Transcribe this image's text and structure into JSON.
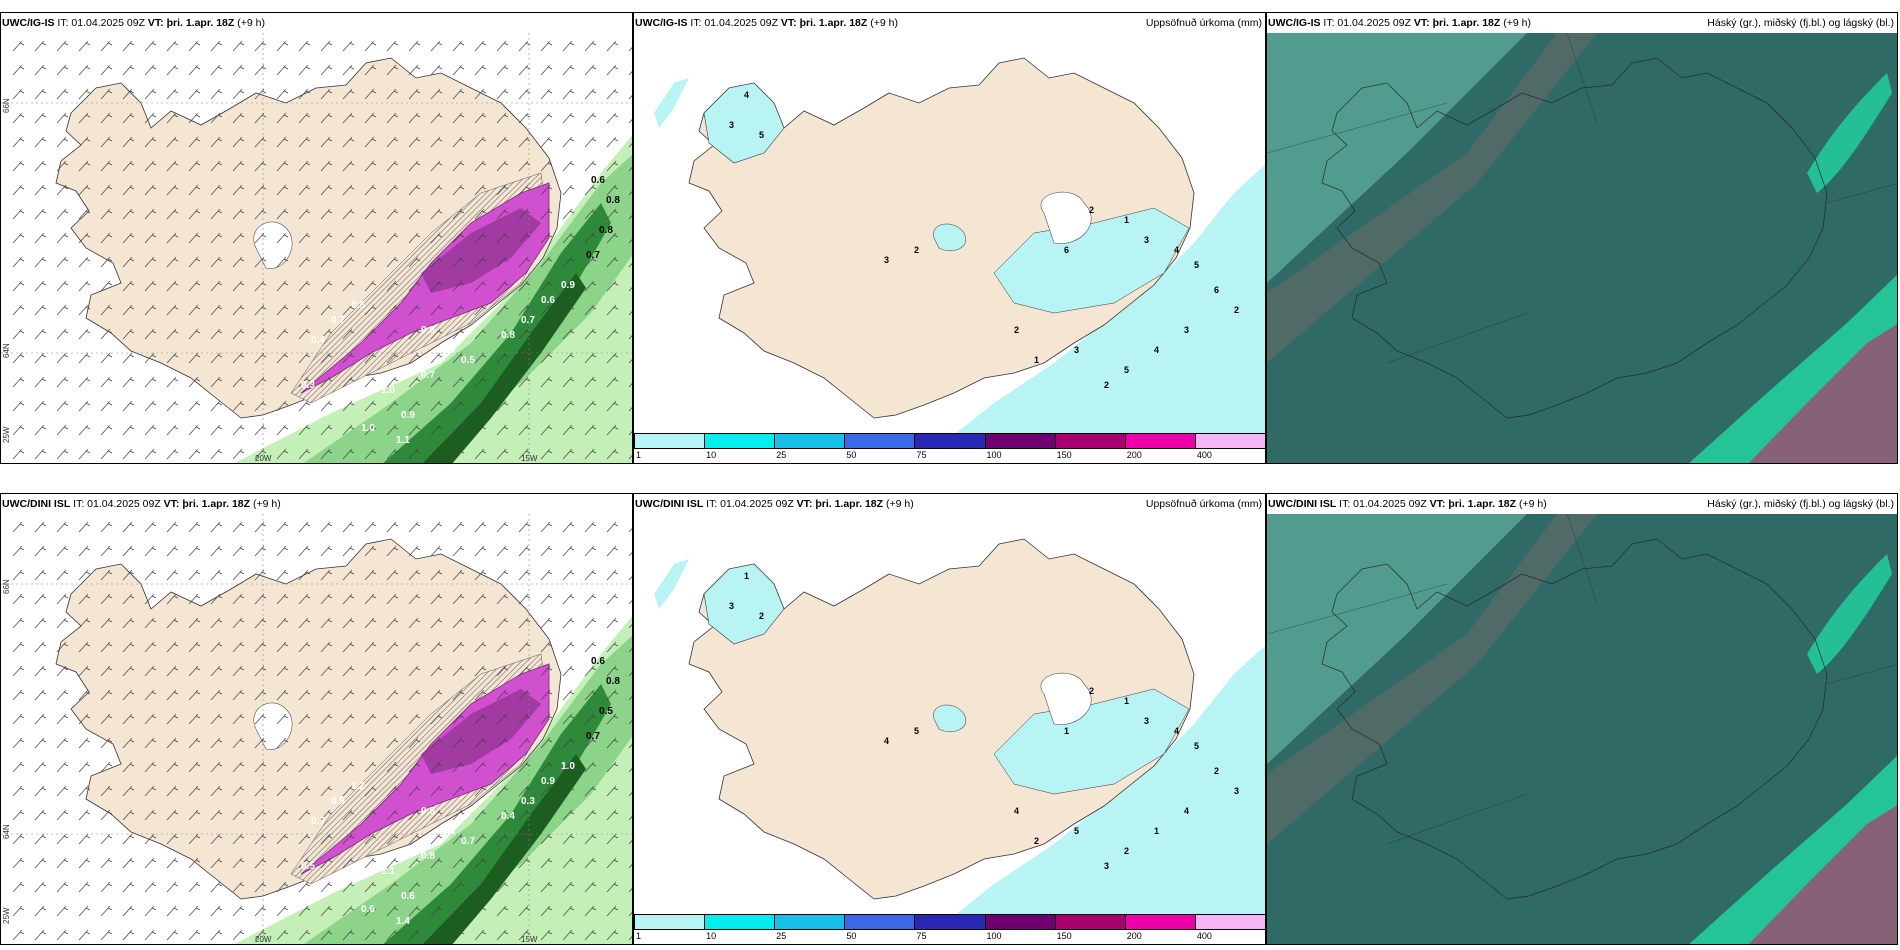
{
  "rows": [
    {
      "model": "UWC/IG-IS",
      "panels": [
        {
          "model_label": "UWC/IG-IS",
          "it_label": "IT: 01.04.2025 09Z",
          "vt_label": "VT: þri. 1.apr. 18Z",
          "lead_label": "(+9 h)",
          "right_title": ""
        },
        {
          "model_label": "UWC/IG-IS",
          "it_label": "IT: 01.04.2025 09Z",
          "vt_label": "VT: þri. 1.apr. 18Z",
          "lead_label": "(+9 h)",
          "right_title": "Uppsöfnuð úrkoma (mm)"
        },
        {
          "model_label": "UWC/IG-IS",
          "it_label": "IT: 01.04.2025 09Z",
          "vt_label": "VT: þri. 1.apr. 18Z",
          "lead_label": "(+9 h)",
          "right_title": "Háský (gr.), miðský (fj.bl.) og lágský (bl.)"
        }
      ],
      "wind_values": [
        "0.6",
        "0.8",
        "0.8",
        "0.7",
        "0.9",
        "0.6",
        "0.7",
        "0.8",
        "0.5",
        "0.7",
        "1.0",
        "0.9",
        "0.3",
        "0.4",
        "0.7",
        "0.8",
        "0.6",
        "0.5",
        "1.0",
        "1.1"
      ],
      "precip_values": [
        "2",
        "1",
        "3",
        "4",
        "5",
        "6",
        "2",
        "3",
        "4",
        "5",
        "2",
        "3",
        "1",
        "2",
        "4",
        "3",
        "5",
        "3",
        "2",
        "6"
      ]
    },
    {
      "model": "UWC/DINI ISL",
      "panels": [
        {
          "model_label": "UWC/DINI ISL",
          "it_label": "IT: 01.04.2025 09Z",
          "vt_label": "VT: þri. 1.apr. 18Z",
          "lead_label": "(+9 h)",
          "right_title": ""
        },
        {
          "model_label": "UWC/DINI ISL",
          "it_label": "IT: 01.04.2025 09Z",
          "vt_label": "VT: þri. 1.apr. 18Z",
          "lead_label": "(+9 h)",
          "right_title": "Uppsöfnuð úrkoma (mm)"
        },
        {
          "model_label": "UWC/DINI ISL",
          "it_label": "IT: 01.04.2025 09Z",
          "vt_label": "VT: þri. 1.apr. 18Z",
          "lead_label": "(+9 h)",
          "right_title": "Háský (gr.), miðský (fj.bl.) og lágský (bl.)"
        }
      ],
      "wind_values": [
        "0.6",
        "0.8",
        "0.5",
        "0.7",
        "1.0",
        "0.9",
        "0.3",
        "0.4",
        "0.7",
        "0.8",
        "1.1",
        "0.6",
        "0.5",
        "0.7",
        "0.9",
        "1.2",
        "0.8",
        "0.3",
        "0.6",
        "1.4"
      ],
      "precip_values": [
        "2",
        "1",
        "3",
        "4",
        "5",
        "2",
        "3",
        "4",
        "1",
        "2",
        "3",
        "5",
        "2",
        "4",
        "1",
        "3",
        "2",
        "4",
        "5",
        "1"
      ]
    }
  ],
  "axis_labels": {
    "lon_20w": "20W",
    "lon_15w": "15W",
    "lat_66n": "66N",
    "lat_64n": "64N",
    "lon_25w": "25W"
  },
  "colorbar": {
    "ticks": [
      "1",
      "10",
      "25",
      "50",
      "75",
      "100",
      "150",
      "200",
      "400"
    ],
    "colors": [
      "#b9f4f4",
      "#00eeee",
      "#16c0e8",
      "#3a68e6",
      "#2828b4",
      "#6e0070",
      "#a8006e",
      "#ee00a8",
      "#f6b6f6"
    ]
  },
  "palette": {
    "land": "#f5e6d4",
    "hatch": "#555555",
    "violet": "#d050d0",
    "violet_dark": "#7a2a7a",
    "green_light": "#c4f0b8",
    "green_mid": "#8cd48a",
    "green_dark": "#2e8a3a",
    "green_deep": "#1b5e20",
    "cyan_fill": "#b9f4f4",
    "sat_base": "#2f6a66",
    "sat_light": "#5aa89a",
    "sat_mint": "#22d4a0",
    "sat_pink": "#a8406a"
  }
}
